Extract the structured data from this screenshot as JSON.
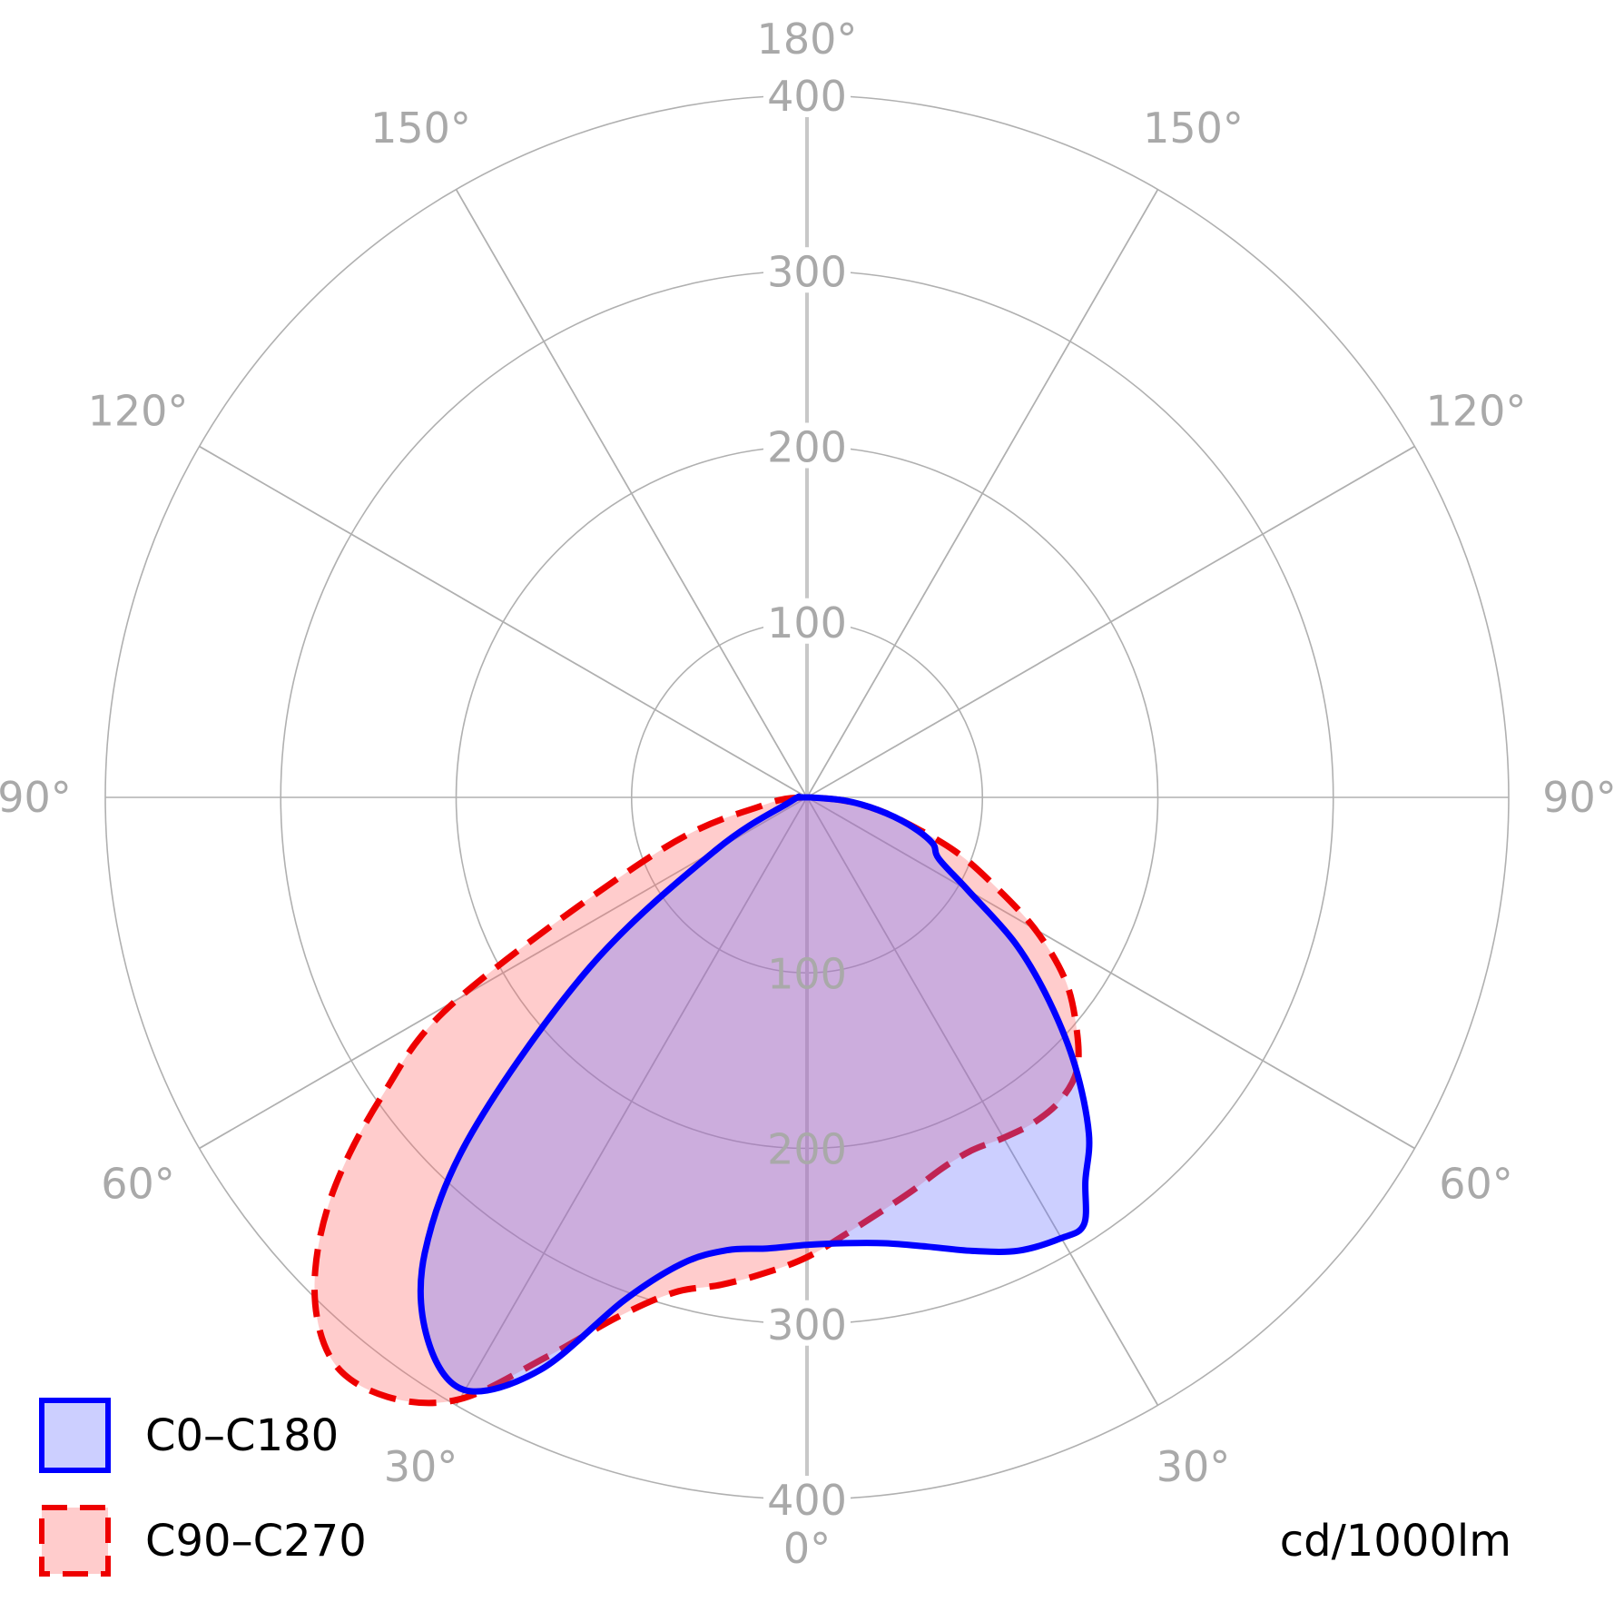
{
  "chart_data": {
    "type": "polar",
    "unit": "cd/1000lm",
    "radial_ticks": [
      100,
      200,
      300,
      400
    ],
    "radial_max": 400,
    "angle_ticks": [
      {
        "angle": 0,
        "label": "0°"
      },
      {
        "angle": 30,
        "label": "30°"
      },
      {
        "angle": 60,
        "label": "60°"
      },
      {
        "angle": 90,
        "label": "90°"
      },
      {
        "angle": 120,
        "label": "120°"
      },
      {
        "angle": 150,
        "label": "150°"
      },
      {
        "angle": 180,
        "label": "180°"
      }
    ],
    "series": [
      {
        "name": "C0–C180",
        "color": "#0000ff",
        "fill": "rgba(100,110,255,0.33)",
        "dashed": false,
        "points": [
          [
            -90,
            5
          ],
          [
            -75,
            10
          ],
          [
            -60,
            60
          ],
          [
            -52,
            157
          ],
          [
            -45,
            270
          ],
          [
            -40,
            339
          ],
          [
            -35,
            377
          ],
          [
            -30,
            390
          ],
          [
            -25,
            360
          ],
          [
            -20,
            305
          ],
          [
            -15,
            275
          ],
          [
            -10,
            262
          ],
          [
            -5,
            258
          ],
          [
            0,
            255
          ],
          [
            5,
            255
          ],
          [
            10,
            258
          ],
          [
            15,
            265
          ],
          [
            20,
            275
          ],
          [
            25,
            285
          ],
          [
            30,
            290
          ],
          [
            33,
            290
          ],
          [
            36,
            270
          ],
          [
            40,
            250
          ],
          [
            45,
            216
          ],
          [
            50,
            180
          ],
          [
            55,
            145
          ],
          [
            60,
            106
          ],
          [
            65,
            83
          ],
          [
            70,
            76
          ],
          [
            75,
            60
          ],
          [
            80,
            41
          ],
          [
            85,
            22
          ],
          [
            90,
            2
          ]
        ]
      },
      {
        "name": "C90–C270",
        "color": "#ee0000",
        "fill": "rgba(255,110,110,0.35)",
        "dashed": true,
        "points": [
          [
            -90,
            3
          ],
          [
            -80,
            25
          ],
          [
            -70,
            90
          ],
          [
            -60,
            230
          ],
          [
            -55,
            295
          ],
          [
            -50,
            354
          ],
          [
            -45,
            397
          ],
          [
            -40,
            420
          ],
          [
            -35,
            417
          ],
          [
            -30,
            396
          ],
          [
            -25,
            352
          ],
          [
            -20,
            315
          ],
          [
            -15,
            292
          ],
          [
            -10,
            282
          ],
          [
            -5,
            272
          ],
          [
            0,
            262
          ],
          [
            5,
            250
          ],
          [
            10,
            240
          ],
          [
            15,
            232
          ],
          [
            20,
            225
          ],
          [
            25,
            222
          ],
          [
            30,
            224
          ],
          [
            35,
            226
          ],
          [
            40,
            225
          ],
          [
            45,
            218
          ],
          [
            50,
            200
          ],
          [
            55,
            179
          ],
          [
            60,
            150
          ],
          [
            65,
            117
          ],
          [
            70,
            90
          ],
          [
            75,
            61
          ],
          [
            80,
            41
          ],
          [
            85,
            21
          ],
          [
            90,
            2
          ]
        ]
      }
    ],
    "grid": true,
    "legend": "bottom-left"
  }
}
